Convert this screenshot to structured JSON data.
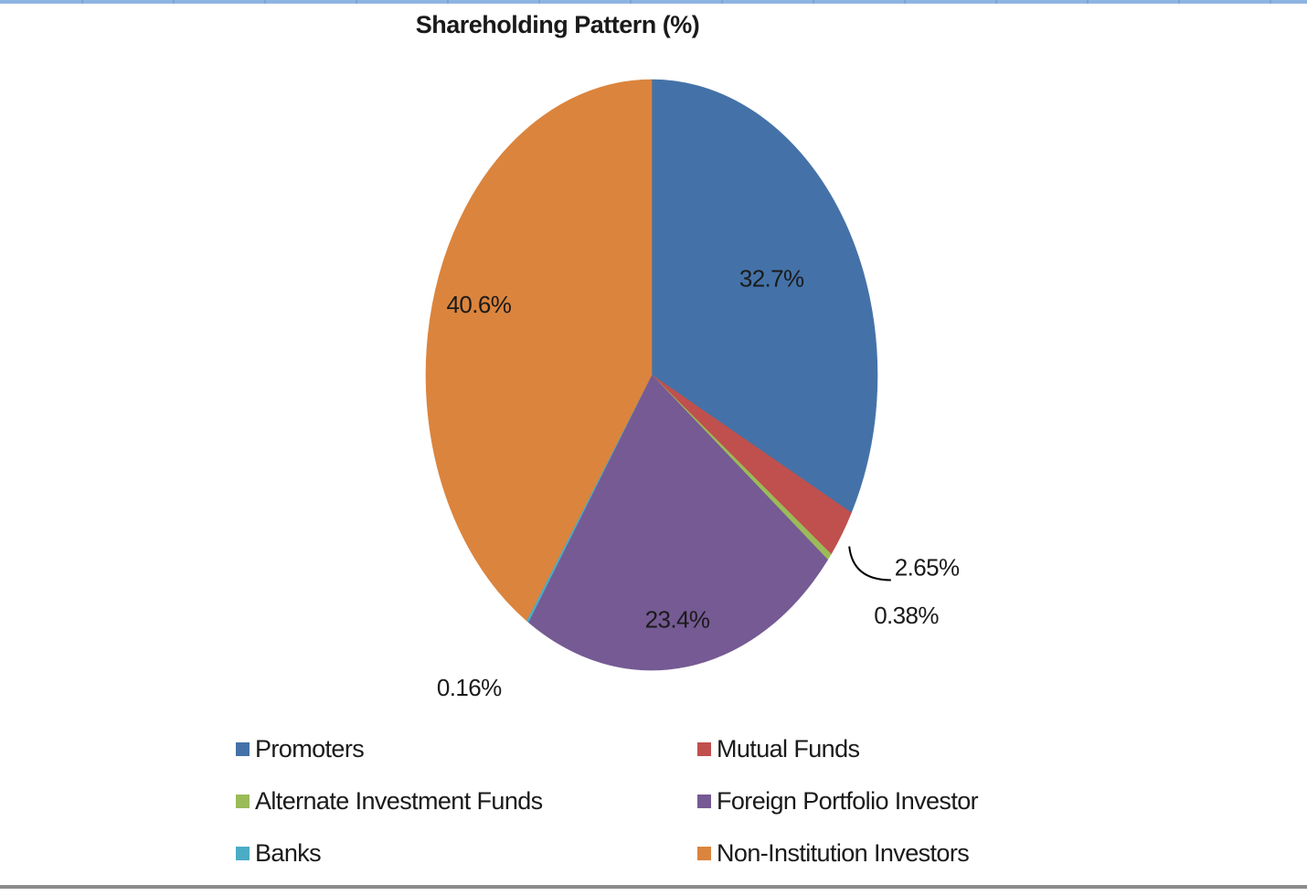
{
  "chart_data": {
    "type": "pie",
    "title": "Shareholding Pattern (%)",
    "slices": [
      {
        "name": "Promoters",
        "value": 32.7,
        "label": "32.7%",
        "color": "#4472a8"
      },
      {
        "name": "Mutual Funds",
        "value": 2.65,
        "label": "2.65%",
        "color": "#c0504d"
      },
      {
        "name": "Alternate Investment Funds",
        "value": 0.38,
        "label": "0.38%",
        "color": "#9bbb59"
      },
      {
        "name": "Foreign Portfolio Investor",
        "value": 23.4,
        "label": "23.4%",
        "color": "#755a93"
      },
      {
        "name": "Banks",
        "value": 0.16,
        "label": "0.16%",
        "color": "#4bacc6"
      },
      {
        "name": "Non-Institution Investors",
        "value": 40.6,
        "label": "40.6%",
        "color": "#db843d"
      }
    ],
    "legend_position": "bottom",
    "legend_columns": 2
  }
}
